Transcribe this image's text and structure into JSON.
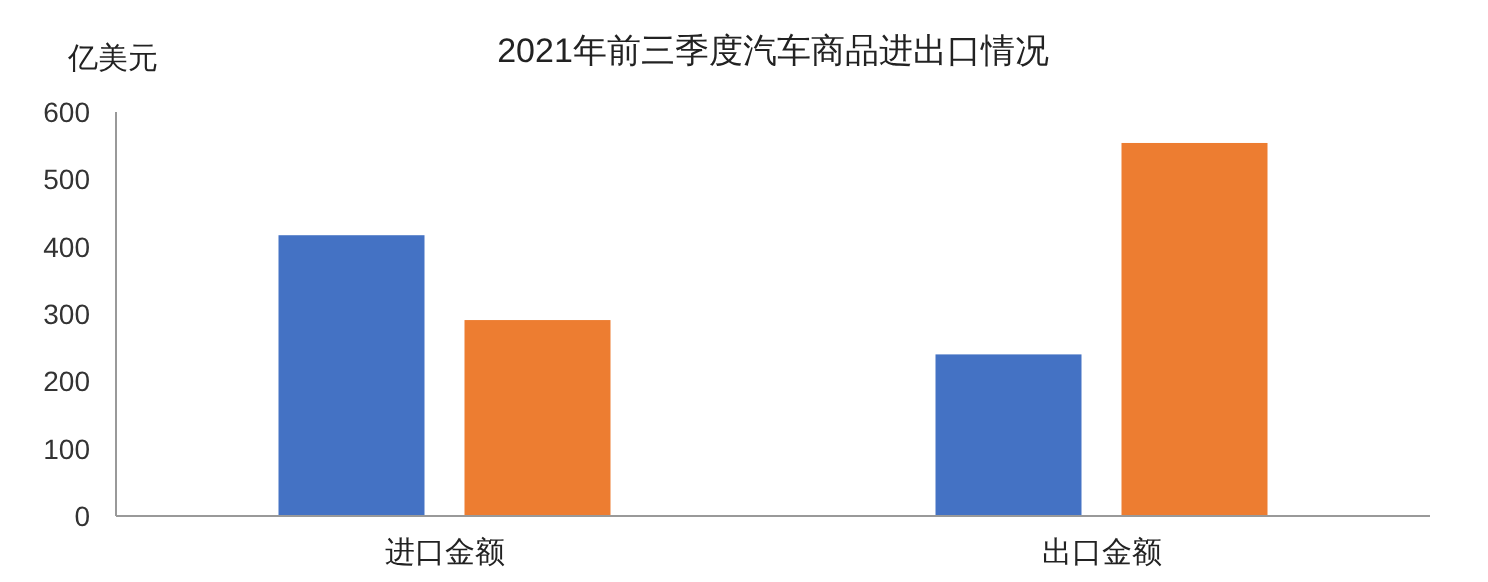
{
  "chart_data": {
    "type": "bar",
    "title": "2021年前三季度汽车商品进出口情况",
    "ylabel": "亿美元",
    "categories": [
      "进口金额",
      "出口金额"
    ],
    "series": [
      {
        "color": "#4472c4",
        "values": [
          417,
          240
        ]
      },
      {
        "color": "#ed7d31",
        "values": [
          291,
          554
        ]
      }
    ],
    "ylim": [
      0,
      600
    ],
    "yticks": [
      0,
      100,
      200,
      300,
      400,
      500,
      600
    ],
    "grid": false
  }
}
